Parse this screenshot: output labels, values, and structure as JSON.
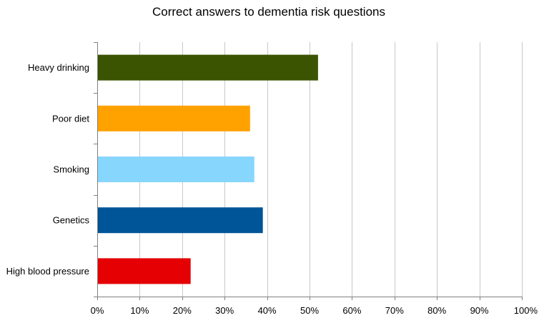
{
  "chart_data": {
    "type": "bar",
    "orientation": "horizontal",
    "title": "Correct answers to dementia risk questions",
    "xlabel": "",
    "ylabel": "",
    "categories": [
      "Heavy drinking",
      "Poor diet",
      "Smoking",
      "Genetics",
      "High blood pressure"
    ],
    "values": [
      52,
      36,
      37,
      39,
      22
    ],
    "bar_colors": [
      "#3a5401",
      "#ffa200",
      "#87d6fd",
      "#005598",
      "#e40003"
    ],
    "xlim": [
      0,
      100
    ],
    "x_ticks": [
      0,
      10,
      20,
      30,
      40,
      50,
      60,
      70,
      80,
      90,
      100
    ],
    "x_tick_labels": [
      "0%",
      "10%",
      "20%",
      "30%",
      "40%",
      "50%",
      "60%",
      "70%",
      "80%",
      "90%",
      "100%"
    ],
    "grid": "vertical",
    "legend": "none"
  },
  "colors": {
    "gridline": "#c8c8c8",
    "axis": "#808080",
    "text": "#000000"
  }
}
